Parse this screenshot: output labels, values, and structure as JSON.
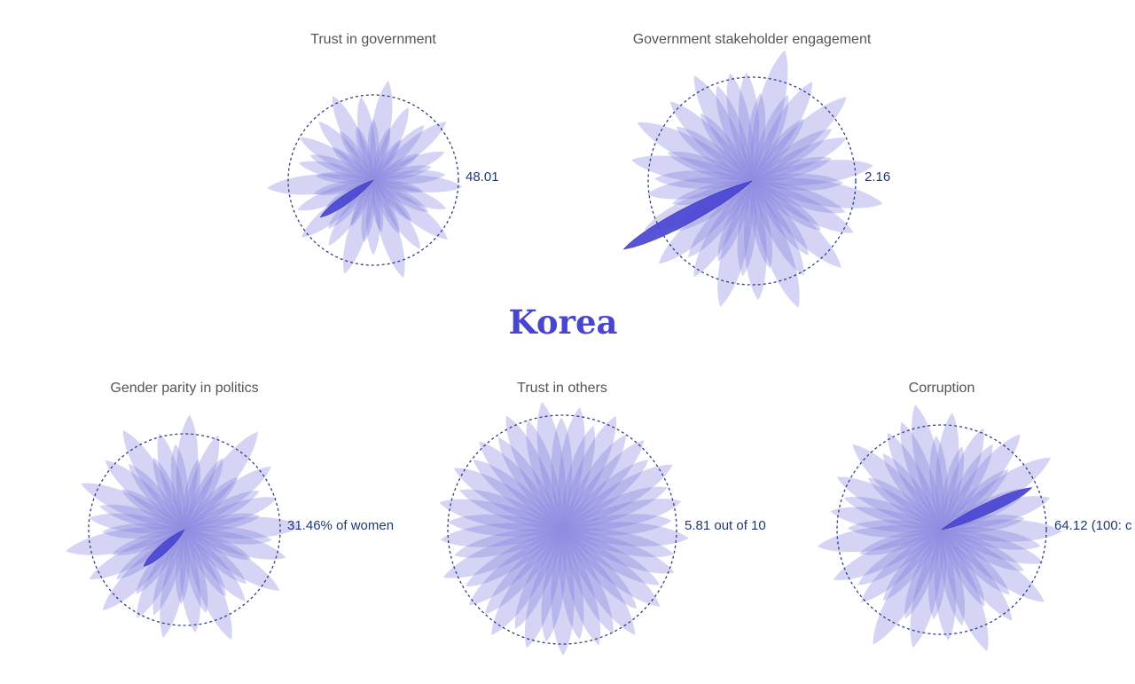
{
  "page_title": "Korea",
  "colors": {
    "petal": "#7b78dd",
    "highlight": "#4a45d2",
    "reference_circle": "#2b3f86",
    "title": "#4a45cf",
    "panel_title": "#555555",
    "value_label": "#1f3a73"
  },
  "chart_data": [
    {
      "type": "radial-petal",
      "title": "Trust in government",
      "value_label": "48.01",
      "highlight": {
        "angle_deg": 215,
        "value": 0.76
      },
      "petals": [
        0.72,
        1.18,
        0.65,
        0.95,
        0.58,
        0.88,
        1.1,
        0.62,
        0.9,
        0.7,
        0.85,
        1.05,
        0.6,
        0.92,
        0.75,
        1.12,
        0.66,
        0.98,
        0.7,
        1.2,
        0.62,
        0.88,
        0.74,
        1.15,
        0.6,
        0.93,
        0.78,
        1.08,
        0.64,
        0.96,
        0.72,
        1.25,
        0.68,
        0.9,
        0.8,
        1.0,
        0.62,
        0.94,
        0.7,
        1.1,
        0.66,
        0.99
      ]
    },
    {
      "type": "radial-petal",
      "title": "Government stakeholder engagement",
      "value_label": "2.16",
      "highlight": {
        "angle_deg": 208,
        "value": 1.4
      },
      "petals": [
        1.05,
        0.85,
        1.3,
        0.9,
        1.12,
        0.78,
        1.22,
        0.92,
        1.0,
        0.8,
        1.18,
        0.88,
        1.28,
        0.95,
        1.1,
        0.82,
        1.2,
        0.9,
        1.04,
        1.3,
        0.86,
        1.15,
        0.92,
        1.25,
        0.84,
        1.08,
        0.96,
        1.2,
        0.88,
        1.14,
        0.8,
        1.02,
        0.94,
        1.18,
        0.86,
        1.24,
        0.9,
        1.1,
        0.82,
        1.16,
        0.98,
        1.06
      ]
    },
    {
      "type": "radial-petal",
      "title": "Gender parity in politics",
      "value_label": "31.46% of women",
      "highlight": {
        "angle_deg": 222,
        "value": 0.57
      },
      "petals": [
        0.9,
        1.2,
        0.75,
        1.05,
        0.85,
        1.28,
        0.78,
        1.12,
        0.88,
        1.02,
        0.8,
        1.22,
        0.92,
        1.1,
        0.76,
        1.18,
        0.86,
        0.98,
        0.82,
        1.25,
        0.9,
        1.08,
        0.78,
        1.15,
        0.95,
        1.05,
        0.84,
        1.2,
        0.88,
        1.12,
        0.8,
        1.26,
        0.86,
        1.0,
        0.92,
        1.18,
        0.78,
        1.1,
        0.9,
        1.22,
        0.82,
        1.04
      ]
    },
    {
      "type": "radial-petal",
      "title": "Trust in others",
      "value_label": "5.81 out of 10",
      "highlight": null,
      "petals": [
        1.13,
        0.98,
        1.08,
        0.95,
        1.1,
        1.0,
        1.06,
        0.97,
        1.12,
        0.99,
        1.07,
        0.96,
        1.11,
        1.0,
        1.05,
        0.98,
        1.09,
        0.95,
        1.12,
        1.01,
        1.06,
        0.97,
        1.1,
        0.99,
        1.08,
        0.96,
        1.11,
        1.0,
        1.05,
        0.98,
        1.12,
        0.97,
        1.07,
        1.0,
        1.1,
        0.96,
        1.09,
        0.99,
        1.06,
        0.98,
        1.11,
        1.0
      ]
    },
    {
      "type": "radial-petal",
      "title": "Corruption",
      "value_label": "64.12 (100: c",
      "highlight": {
        "angle_deg": 25,
        "value": 0.95
      },
      "petals": [
        1.22,
        0.9,
        1.12,
        0.82,
        1.05,
        0.95,
        1.18,
        0.86,
        1.25,
        0.92,
        1.08,
        0.8,
        1.15,
        0.96,
        1.02,
        0.88,
        1.2,
        0.9,
        1.1,
        0.84,
        1.24,
        0.94,
        1.06,
        0.86,
        1.16,
        0.92,
        1.28,
        0.88,
        1.04,
        0.96,
        1.14,
        0.82,
        1.2,
        0.9,
        1.08,
        0.98,
        1.12,
        0.86,
        1.18,
        0.92,
        1.06,
        1.1
      ]
    }
  ]
}
